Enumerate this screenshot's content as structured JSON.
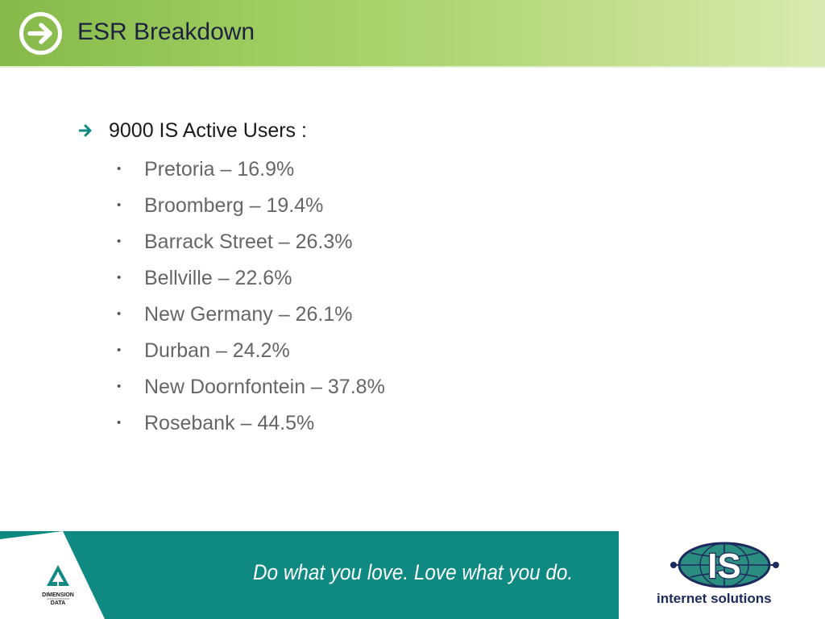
{
  "slide": {
    "title": "ESR Breakdown",
    "main_bullet": "9000 IS Active Users :",
    "sub_bullets": [
      "Pretoria – 16.9%",
      "Broomberg – 19.4%",
      "Barrack Street – 26.3%",
      "Bellville – 22.6%",
      "New Germany – 26.1%",
      "Durban – 24.2%",
      "New Doornfontein – 37.8%",
      "Rosebank – 44.5%"
    ]
  },
  "footer": {
    "slogan": "Do what you love. Love what you do.",
    "dd_logo_text": [
      "DIMENSION",
      "DATA"
    ],
    "is_logo_text": "IS",
    "is_brand_word1": "internet",
    "is_brand_word2": "solutions"
  },
  "colors": {
    "header_green": "#9ccb5e",
    "footer_teal": "#0e8a82",
    "arrow_teal": "#0e8a82",
    "title_navy": "#1f2140",
    "brand_navy": "#1c2a5e"
  },
  "icons": {
    "header": "arrow-right-circle-icon",
    "bullet": "arrow-right-icon"
  }
}
